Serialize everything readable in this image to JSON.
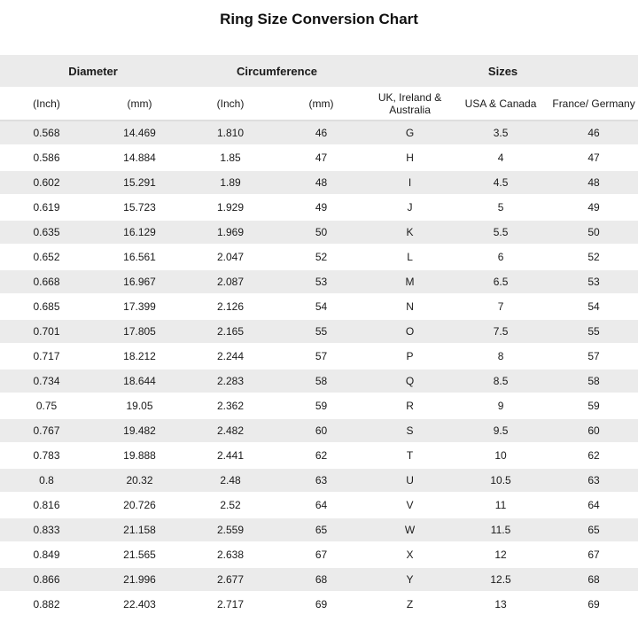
{
  "page_title": "Ring Size Conversion Chart",
  "colors": {
    "stripe_bg": "#ebebeb",
    "row_bg": "#ffffff",
    "text": "#1a1a1a",
    "subheader_divider": "#dedede"
  },
  "chart_data": {
    "type": "table",
    "title": "Ring Size Conversion Chart",
    "column_groups": [
      {
        "label": "Diameter",
        "colspan": 2
      },
      {
        "label": "Circumference",
        "colspan": 2
      },
      {
        "label": "Sizes",
        "colspan": 3
      }
    ],
    "columns": [
      "(Inch)",
      "(mm)",
      "(Inch)",
      "(mm)",
      "UK, Ireland & Australia",
      "USA & Canada",
      "France/ Germany"
    ],
    "rows": [
      [
        "0.568",
        "14.469",
        "1.810",
        "46",
        "G",
        "3.5",
        "46"
      ],
      [
        "0.586",
        "14.884",
        "1.85",
        "47",
        "H",
        "4",
        "47"
      ],
      [
        "0.602",
        "15.291",
        "1.89",
        "48",
        "I",
        "4.5",
        "48"
      ],
      [
        "0.619",
        "15.723",
        "1.929",
        "49",
        "J",
        "5",
        "49"
      ],
      [
        "0.635",
        "16.129",
        "1.969",
        "50",
        "K",
        "5.5",
        "50"
      ],
      [
        "0.652",
        "16.561",
        "2.047",
        "52",
        "L",
        "6",
        "52"
      ],
      [
        "0.668",
        "16.967",
        "2.087",
        "53",
        "M",
        "6.5",
        "53"
      ],
      [
        "0.685",
        "17.399",
        "2.126",
        "54",
        "N",
        "7",
        "54"
      ],
      [
        "0.701",
        "17.805",
        "2.165",
        "55",
        "O",
        "7.5",
        "55"
      ],
      [
        "0.717",
        "18.212",
        "2.244",
        "57",
        "P",
        "8",
        "57"
      ],
      [
        "0.734",
        "18.644",
        "2.283",
        "58",
        "Q",
        "8.5",
        "58"
      ],
      [
        "0.75",
        "19.05",
        "2.362",
        "59",
        "R",
        "9",
        "59"
      ],
      [
        "0.767",
        "19.482",
        "2.482",
        "60",
        "S",
        "9.5",
        "60"
      ],
      [
        "0.783",
        "19.888",
        "2.441",
        "62",
        "T",
        "10",
        "62"
      ],
      [
        "0.8",
        "20.32",
        "2.48",
        "63",
        "U",
        "10.5",
        "63"
      ],
      [
        "0.816",
        "20.726",
        "2.52",
        "64",
        "V",
        "11",
        "64"
      ],
      [
        "0.833",
        "21.158",
        "2.559",
        "65",
        "W",
        "11.5",
        "65"
      ],
      [
        "0.849",
        "21.565",
        "2.638",
        "67",
        "X",
        "12",
        "67"
      ],
      [
        "0.866",
        "21.996",
        "2.677",
        "68",
        "Y",
        "12.5",
        "68"
      ],
      [
        "0.882",
        "22.403",
        "2.717",
        "69",
        "Z",
        "13",
        "69"
      ]
    ]
  }
}
